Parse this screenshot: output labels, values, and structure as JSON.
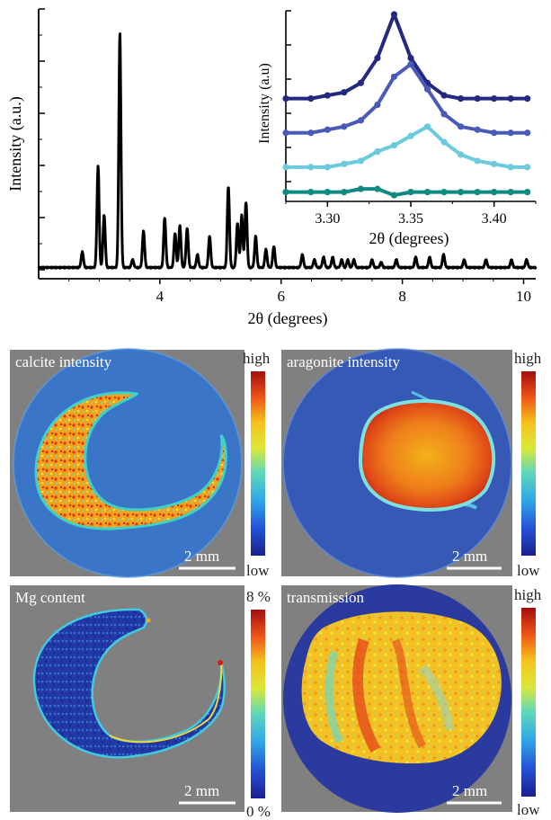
{
  "chart_data": [
    {
      "type": "line",
      "name": "main_pattern",
      "xlabel": "2θ (degrees)",
      "ylabel": "Intensity (a.u.)",
      "xlim": [
        2.0,
        10.2
      ],
      "ylim": [
        0,
        1.0
      ],
      "xticks": [
        4,
        6,
        8,
        10
      ],
      "grid": false,
      "series_color": "#000000",
      "peaks": [
        {
          "x": 2.72,
          "y": 0.06
        },
        {
          "x": 2.98,
          "y": 0.39
        },
        {
          "x": 3.08,
          "y": 0.2
        },
        {
          "x": 3.34,
          "y": 0.9
        },
        {
          "x": 3.55,
          "y": 0.03
        },
        {
          "x": 3.73,
          "y": 0.14
        },
        {
          "x": 4.08,
          "y": 0.19
        },
        {
          "x": 4.25,
          "y": 0.13
        },
        {
          "x": 4.33,
          "y": 0.16
        },
        {
          "x": 4.45,
          "y": 0.15
        },
        {
          "x": 4.62,
          "y": 0.05
        },
        {
          "x": 4.82,
          "y": 0.12
        },
        {
          "x": 5.13,
          "y": 0.31
        },
        {
          "x": 5.28,
          "y": 0.17
        },
        {
          "x": 5.35,
          "y": 0.2
        },
        {
          "x": 5.42,
          "y": 0.25
        },
        {
          "x": 5.58,
          "y": 0.12
        },
        {
          "x": 5.75,
          "y": 0.07
        },
        {
          "x": 5.88,
          "y": 0.08
        },
        {
          "x": 6.35,
          "y": 0.05
        },
        {
          "x": 6.55,
          "y": 0.03
        },
        {
          "x": 6.7,
          "y": 0.04
        },
        {
          "x": 6.85,
          "y": 0.04
        },
        {
          "x": 7.0,
          "y": 0.03
        },
        {
          "x": 7.1,
          "y": 0.03
        },
        {
          "x": 7.2,
          "y": 0.03
        },
        {
          "x": 7.5,
          "y": 0.03
        },
        {
          "x": 7.65,
          "y": 0.02
        },
        {
          "x": 7.9,
          "y": 0.03
        },
        {
          "x": 8.22,
          "y": 0.04
        },
        {
          "x": 8.45,
          "y": 0.04
        },
        {
          "x": 8.68,
          "y": 0.05
        },
        {
          "x": 9.02,
          "y": 0.03
        },
        {
          "x": 9.38,
          "y": 0.03
        },
        {
          "x": 9.8,
          "y": 0.03
        },
        {
          "x": 10.05,
          "y": 0.03
        }
      ]
    },
    {
      "type": "line",
      "name": "inset",
      "xlabel": "2θ (degrees)",
      "ylabel": "Intensity (a.u)",
      "xlim": [
        3.275,
        3.425
      ],
      "xticks": [
        3.3,
        3.35,
        3.4
      ],
      "ylim": [
        0,
        1.0
      ],
      "x": [
        3.275,
        3.29,
        3.3,
        3.31,
        3.32,
        3.33,
        3.34,
        3.35,
        3.36,
        3.37,
        3.38,
        3.39,
        3.4,
        3.41,
        3.42
      ],
      "series": [
        {
          "color": "#22297f",
          "values": [
            0.73,
            0.73,
            0.74,
            0.75,
            0.78,
            0.86,
            1.0,
            0.86,
            0.78,
            0.74,
            0.73,
            0.73,
            0.73,
            0.73,
            0.73
          ]
        },
        {
          "color": "#4a5bb7",
          "values": [
            0.62,
            0.62,
            0.63,
            0.64,
            0.66,
            0.71,
            0.8,
            0.84,
            0.76,
            0.68,
            0.64,
            0.63,
            0.62,
            0.62,
            0.62
          ]
        },
        {
          "color": "#6bcadd",
          "values": [
            0.51,
            0.51,
            0.51,
            0.52,
            0.53,
            0.56,
            0.58,
            0.61,
            0.64,
            0.59,
            0.55,
            0.53,
            0.52,
            0.51,
            0.51
          ]
        },
        {
          "color": "#0f8a83",
          "values": [
            0.43,
            0.43,
            0.43,
            0.43,
            0.44,
            0.44,
            0.42,
            0.43,
            0.43,
            0.43,
            0.43,
            0.43,
            0.43,
            0.43,
            0.43
          ]
        }
      ]
    }
  ],
  "maps": [
    {
      "title": "calcite intensity",
      "cb_top": "high",
      "cb_bottom": "low",
      "scalebar": "2 mm"
    },
    {
      "title": "aragonite intensity",
      "cb_top": "high",
      "cb_bottom": "low",
      "scalebar": "2 mm"
    },
    {
      "title": "Mg content",
      "cb_top": "8 %",
      "cb_bottom": "0 %",
      "scalebar": "2 mm"
    },
    {
      "title": "transmission",
      "cb_top": "high",
      "cb_bottom": "low",
      "scalebar": "2 mm"
    }
  ],
  "colors": {
    "map_background": "#808080",
    "deep_blue": "#2b3a9e",
    "calcite_background": "#3a75c8",
    "aragonite_background": "#3559b5"
  }
}
